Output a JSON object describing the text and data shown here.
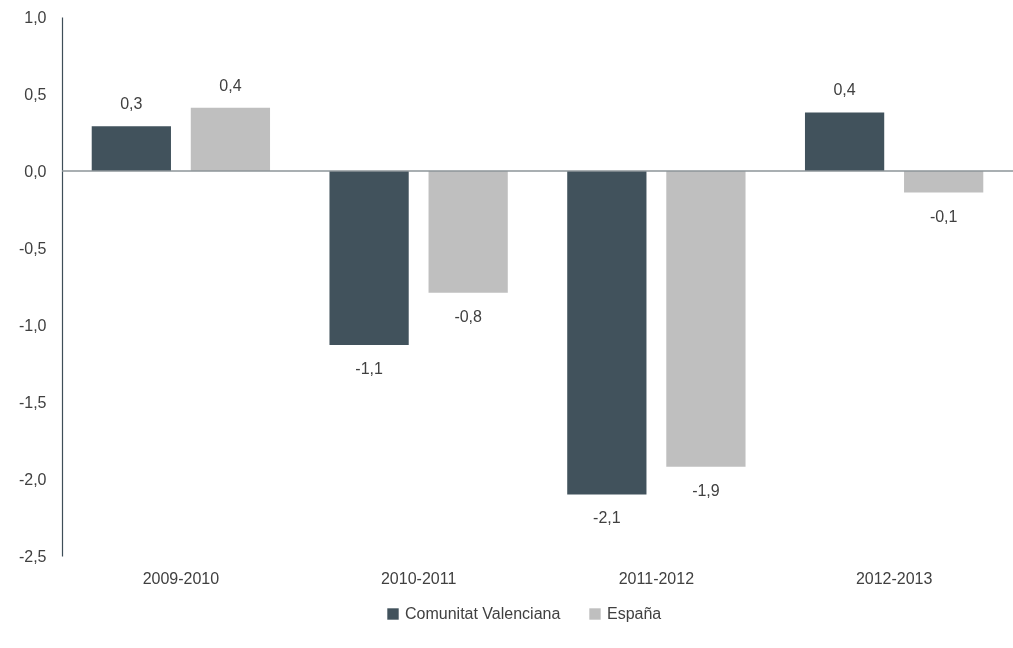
{
  "chart_data": {
    "type": "bar",
    "categories": [
      "2009-2010",
      "2010-2011",
      "2011-2012",
      "2012-2013"
    ],
    "series": [
      {
        "name": "Comunitat Valenciana",
        "color": "#41525c",
        "values": [
          0.29,
          -1.13,
          -2.1,
          0.38
        ],
        "value_labels": [
          "0,3",
          "-1,1",
          "-2,1",
          "0,4"
        ]
      },
      {
        "name": "España",
        "color": "#bfbfbf",
        "values": [
          0.41,
          -0.79,
          -1.92,
          -0.14
        ],
        "value_labels": [
          "0,4",
          "-0,8",
          "-1,9",
          "-0,1"
        ]
      }
    ],
    "ylim": [
      -2.5,
      1
    ],
    "yticks": [
      {
        "value": 1,
        "label": "1,0"
      },
      {
        "value": 0.5,
        "label": "0,5"
      },
      {
        "value": 0,
        "label": "0,0"
      },
      {
        "value": -0.5,
        "label": "-0,5"
      },
      {
        "value": -1,
        "label": "-1,0"
      },
      {
        "value": -1.5,
        "label": "-1,5"
      },
      {
        "value": -2,
        "label": "-2,0"
      },
      {
        "value": -2.5,
        "label": "-2,5"
      }
    ],
    "ref_lines": [
      {
        "axis": "y",
        "value": 0,
        "color": "#8c9599"
      }
    ],
    "grid": false,
    "legend": "bottom"
  }
}
